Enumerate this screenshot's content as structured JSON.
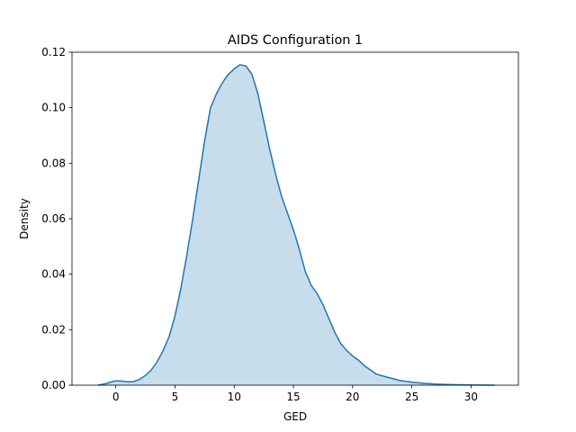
{
  "chart_data": {
    "type": "area",
    "title": "AIDS Configuration 1",
    "xlabel": "GED",
    "ylabel": "Density",
    "xlim": [
      -3.7,
      34.0
    ],
    "ylim": [
      0.0,
      0.12
    ],
    "xticks": [
      0,
      5,
      10,
      15,
      20,
      25,
      30
    ],
    "yticks": [
      "0.00",
      "0.02",
      "0.04",
      "0.06",
      "0.08",
      "0.10",
      "0.12"
    ],
    "grid": false,
    "legend": "none",
    "line_color": "#1f77b4",
    "fill_color": "#1f77b4",
    "fill_opacity": 0.25,
    "series": [
      {
        "x": [
          -1.5,
          -0.8,
          -0.3,
          0.0,
          0.5,
          1.0,
          1.5,
          2.0,
          2.5,
          3.0,
          3.5,
          4.0,
          4.5,
          5.0,
          5.5,
          6.0,
          6.5,
          7.0,
          7.5,
          8.0,
          8.5,
          9.0,
          9.5,
          10.0,
          10.5,
          11.0,
          11.5,
          12.0,
          12.5,
          13.0,
          13.5,
          14.0,
          14.5,
          15.0,
          15.5,
          16.0,
          16.5,
          17.0,
          17.5,
          18.0,
          18.5,
          19.0,
          19.5,
          20.0,
          20.5,
          21.0,
          22.0,
          23.0,
          24.0,
          25.0,
          26.0,
          27.0,
          28.0,
          29.0,
          30.0,
          31.0,
          32.0
        ],
        "y": [
          0.0,
          0.0006,
          0.0013,
          0.0016,
          0.0015,
          0.0012,
          0.0013,
          0.0021,
          0.0035,
          0.0055,
          0.0085,
          0.0125,
          0.0175,
          0.025,
          0.035,
          0.047,
          0.06,
          0.074,
          0.088,
          0.1,
          0.105,
          0.109,
          0.112,
          0.114,
          0.1155,
          0.115,
          0.112,
          0.105,
          0.095,
          0.085,
          0.076,
          0.068,
          0.062,
          0.056,
          0.049,
          0.041,
          0.036,
          0.033,
          0.029,
          0.024,
          0.019,
          0.015,
          0.0125,
          0.0105,
          0.009,
          0.007,
          0.004,
          0.0028,
          0.0017,
          0.0011,
          0.0007,
          0.0004,
          0.00025,
          0.00015,
          0.0001,
          5e-05,
          0.0
        ]
      }
    ]
  }
}
